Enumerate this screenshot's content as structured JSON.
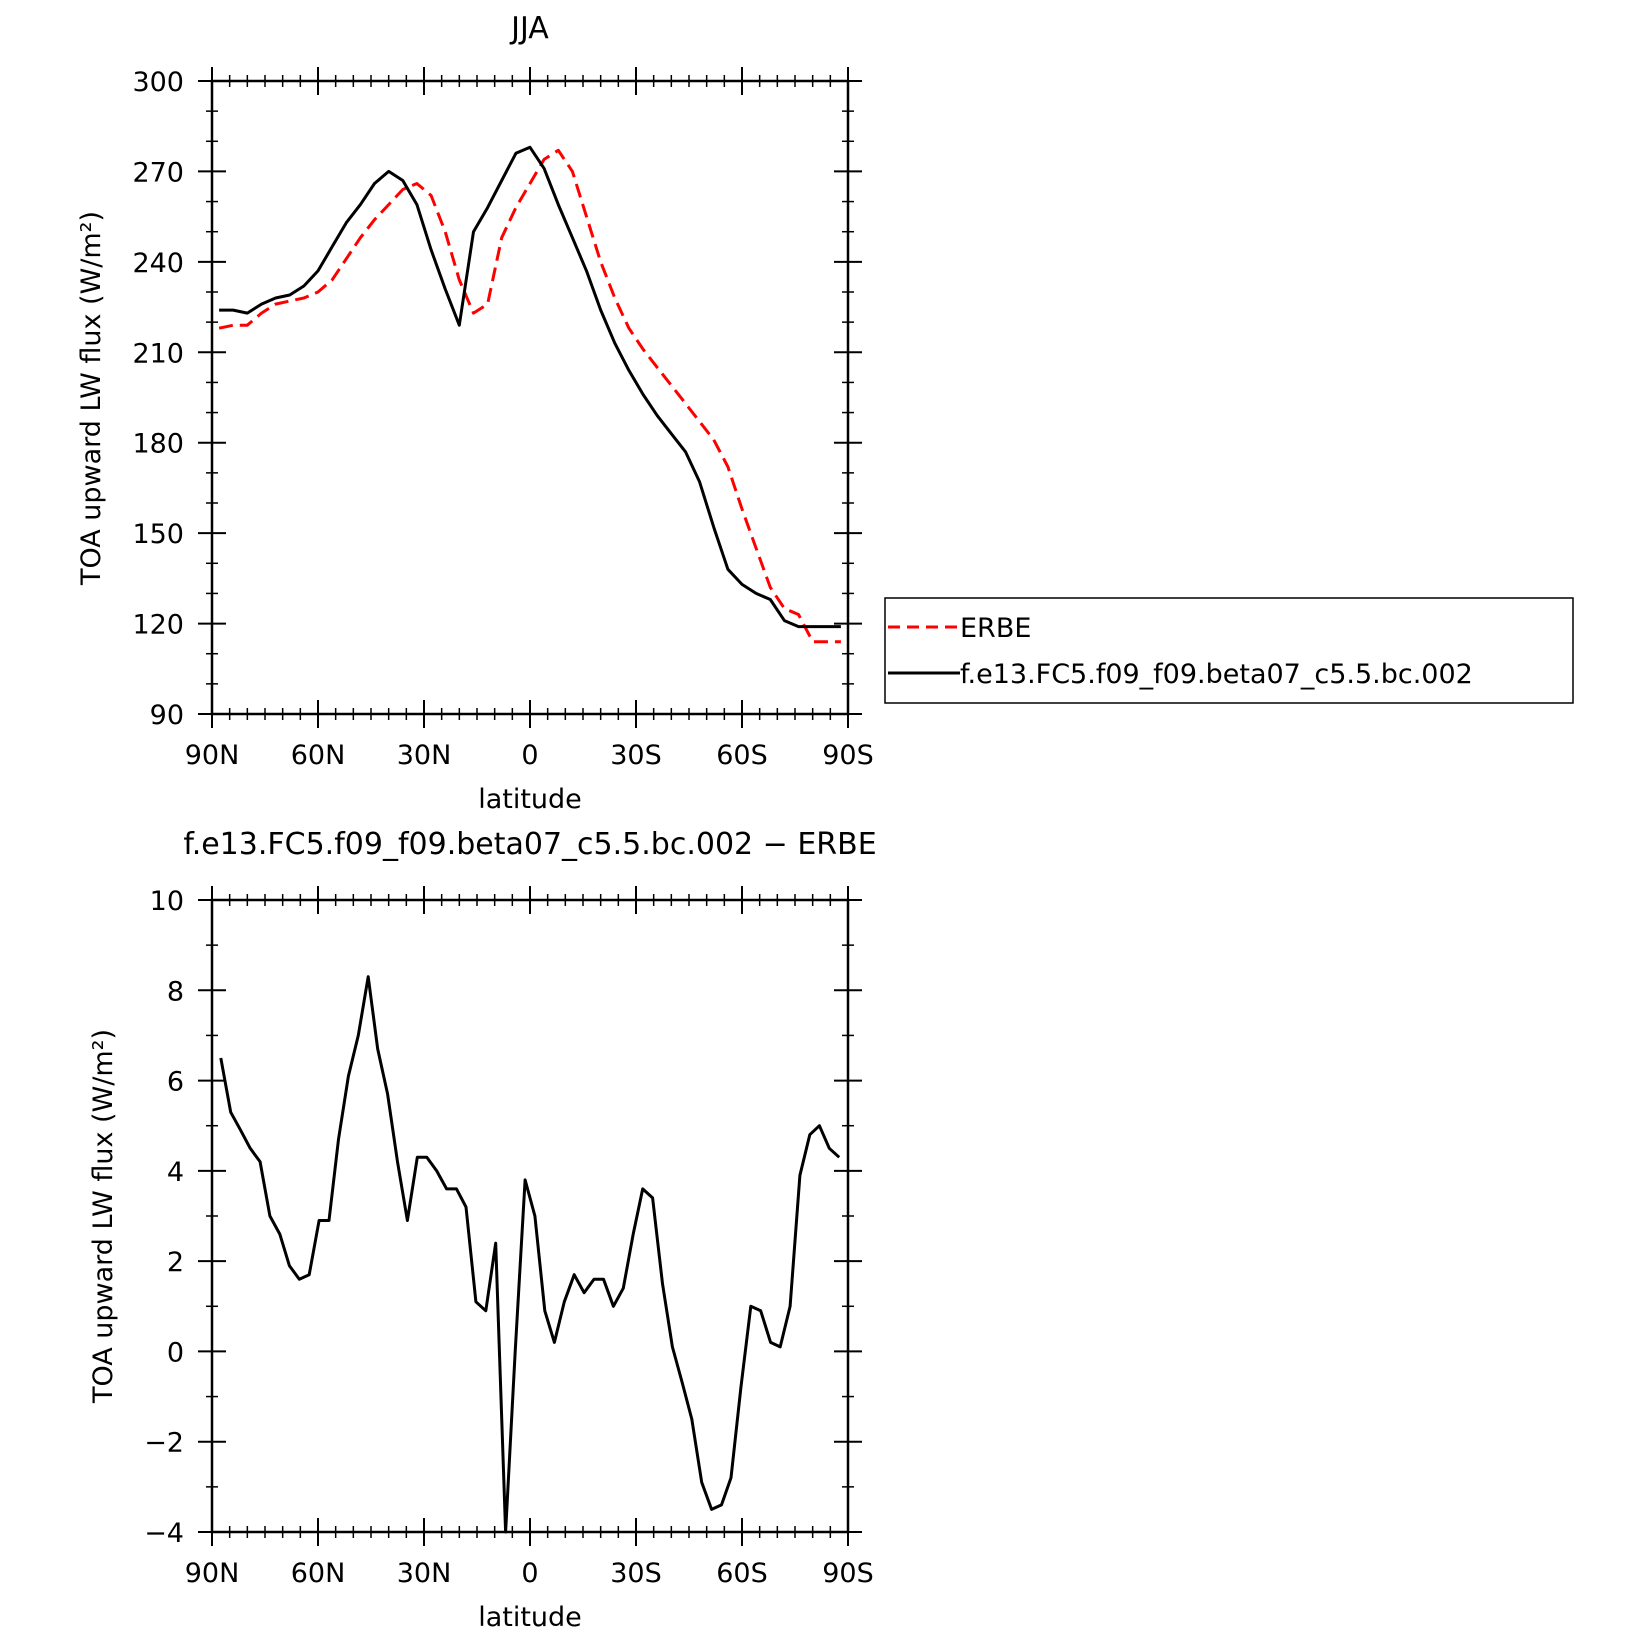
{
  "chart_data": [
    {
      "type": "line",
      "title": "JJA",
      "xlabel": "latitude",
      "ylabel": "TOA upward LW flux (W/m²)",
      "ylim": [
        90,
        300
      ],
      "xlim": [
        90,
        -90
      ],
      "x_tick_labels": [
        "90N",
        "60N",
        "30N",
        "0",
        "30S",
        "60S",
        "90S"
      ],
      "y_tick_labels": [
        "90",
        "120",
        "150",
        "180",
        "210",
        "240",
        "270",
        "300"
      ],
      "legend_placement": "right",
      "legend": [
        "ERBE",
        "f.e13.FC5.f09_f09.beta07_c5.5.bc.002"
      ],
      "series": [
        {
          "name": "ERBE",
          "color": "#ff0000",
          "dash": "dashed",
          "x": [
            88,
            84,
            80,
            76,
            72,
            68,
            64,
            60,
            56,
            52,
            48,
            44,
            40,
            36,
            32,
            28,
            24,
            20,
            16,
            12,
            8,
            4,
            0,
            -4,
            -8,
            -12,
            -16,
            -20,
            -24,
            -28,
            -32,
            -36,
            -40,
            -44,
            -48,
            -52,
            -56,
            -60,
            -64,
            -68,
            -72,
            -76,
            -80,
            -84,
            -88
          ],
          "y": [
            218,
            219,
            219,
            223,
            226,
            227,
            228,
            230,
            234,
            241,
            248,
            254,
            259,
            264,
            266,
            262,
            250,
            234,
            223,
            226,
            248,
            258,
            266,
            274,
            277,
            270,
            255,
            240,
            228,
            218,
            211,
            205,
            199,
            193,
            187,
            181,
            172,
            158,
            145,
            132,
            125,
            123,
            114,
            114,
            114
          ]
        },
        {
          "name": "f.e13.FC5.f09_f09.beta07_c5.5.bc.002",
          "color": "#000000",
          "dash": "solid",
          "x": [
            88,
            84,
            80,
            76,
            72,
            68,
            64,
            60,
            56,
            52,
            48,
            44,
            40,
            36,
            32,
            28,
            24,
            20,
            16,
            12,
            8,
            4,
            0,
            -4,
            -8,
            -12,
            -16,
            -20,
            -24,
            -28,
            -32,
            -36,
            -40,
            -44,
            -48,
            -52,
            -56,
            -60,
            -64,
            -68,
            -72,
            -76,
            -80,
            -84,
            -88
          ],
          "y": [
            224,
            224,
            223,
            226,
            228,
            229,
            232,
            237,
            245,
            253,
            259,
            266,
            270,
            267,
            259,
            244,
            231,
            219,
            250,
            258,
            267,
            276,
            278,
            271,
            259,
            248,
            237,
            224,
            213,
            204,
            196,
            189,
            183,
            177,
            167,
            152,
            138,
            133,
            130,
            128,
            121,
            119,
            119,
            119,
            119
          ]
        }
      ]
    },
    {
      "type": "line",
      "title": "f.e13.FC5.f09_f09.beta07_c5.5.bc.002 − ERBE",
      "xlabel": "latitude",
      "ylabel": "TOA upward LW flux (W/m²)",
      "ylim": [
        -4,
        10
      ],
      "xlim": [
        90,
        -90
      ],
      "x_tick_labels": [
        "90N",
        "60N",
        "30N",
        "0",
        "30S",
        "60S",
        "90S"
      ],
      "y_tick_labels": [
        "−4",
        "−2",
        "0",
        "2",
        "4",
        "6",
        "8",
        "10"
      ],
      "series": [
        {
          "color": "#000000",
          "dash": "solid",
          "x": [
            87.5,
            84.7,
            81.9,
            79.2,
            76.4,
            73.6,
            70.8,
            68.1,
            65.3,
            62.5,
            59.7,
            56.9,
            54.2,
            51.4,
            48.6,
            45.8,
            43.1,
            40.3,
            37.5,
            34.7,
            31.9,
            29.2,
            26.4,
            23.6,
            20.8,
            18.1,
            15.3,
            12.5,
            9.7,
            6.9,
            4.2,
            1.4,
            -1.4,
            -4.2,
            -6.9,
            -9.7,
            -12.5,
            -15.3,
            -18.1,
            -20.8,
            -23.6,
            -26.4,
            -29.2,
            -31.9,
            -34.7,
            -37.5,
            -40.3,
            -43.1,
            -45.8,
            -48.6,
            -51.4,
            -54.2,
            -56.9,
            -59.7,
            -62.5,
            -65.3,
            -68.1,
            -70.8,
            -73.6,
            -76.4,
            -79.2,
            -81.9,
            -84.7,
            -87.5
          ],
          "y": [
            6.5,
            5.3,
            4.9,
            4.5,
            4.2,
            3.0,
            2.6,
            1.9,
            1.6,
            1.7,
            2.9,
            2.9,
            4.7,
            6.1,
            7.0,
            8.3,
            6.7,
            5.7,
            4.2,
            2.9,
            4.3,
            4.3,
            4.0,
            3.6,
            3.6,
            3.2,
            1.1,
            0.9,
            2.4,
            -4.0,
            0.0,
            3.8,
            3.0,
            0.9,
            0.2,
            1.1,
            1.7,
            1.3,
            1.6,
            1.6,
            1.0,
            1.4,
            2.6,
            3.6,
            3.4,
            1.5,
            0.1,
            -0.7,
            -1.5,
            -2.9,
            -3.5,
            -3.4,
            -2.8,
            -0.8,
            1.0,
            0.9,
            0.2,
            0.1,
            1.0,
            3.9,
            4.8,
            5.0,
            4.5,
            4.3
          ]
        }
      ]
    }
  ]
}
